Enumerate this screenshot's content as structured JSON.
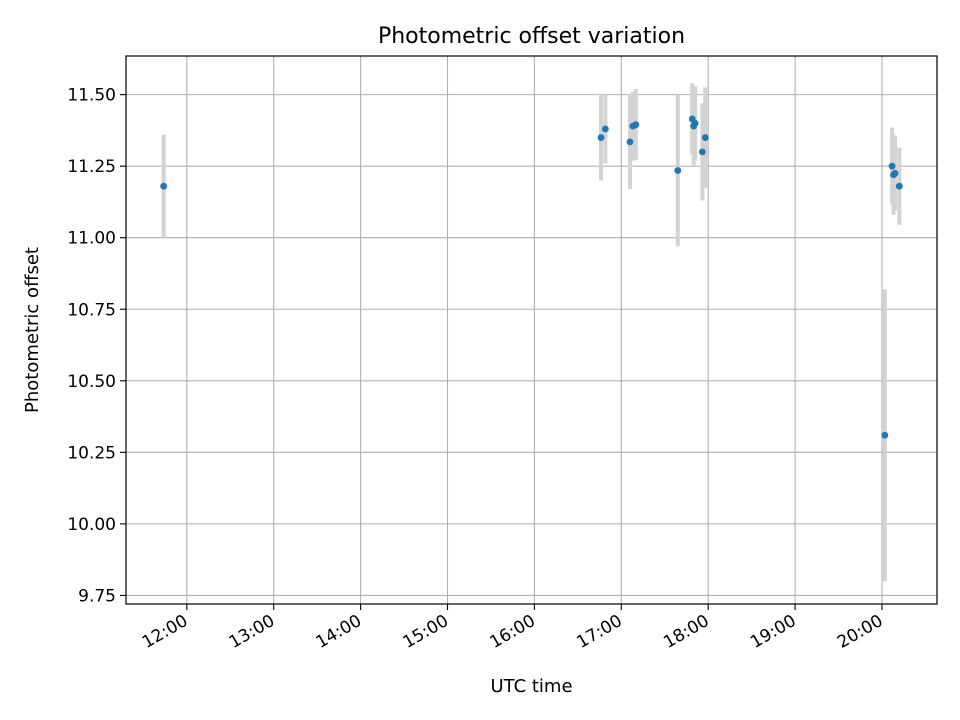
{
  "chart_data": {
    "type": "scatter",
    "title": "Photometric offset variation",
    "xlabel": "UTC time",
    "ylabel": "Photometric offset",
    "xlim": [
      "11:18",
      "20:38"
    ],
    "ylim": [
      9.72,
      11.635
    ],
    "x_ticks": [
      "12:00",
      "13:00",
      "14:00",
      "15:00",
      "16:00",
      "17:00",
      "18:00",
      "19:00",
      "20:00"
    ],
    "y_ticks": [
      "9.75",
      "10.00",
      "10.25",
      "10.50",
      "10.75",
      "11.00",
      "11.25",
      "11.50"
    ],
    "grid": true,
    "point_color": "#1f77b4",
    "errorbar_color": "#d3d3d3",
    "points": [
      {
        "x": "11:44",
        "y": 11.18,
        "err": 0.18
      },
      {
        "x": "16:46",
        "y": 11.35,
        "err": 0.15
      },
      {
        "x": "16:49",
        "y": 11.38,
        "err": 0.12
      },
      {
        "x": "17:06",
        "y": 11.335,
        "err": 0.165
      },
      {
        "x": "17:08",
        "y": 11.39,
        "err": 0.12
      },
      {
        "x": "17:10",
        "y": 11.395,
        "err": 0.125
      },
      {
        "x": "17:39",
        "y": 11.235,
        "err": 0.265
      },
      {
        "x": "17:49",
        "y": 11.415,
        "err": 0.125
      },
      {
        "x": "17:50",
        "y": 11.39,
        "err": 0.14
      },
      {
        "x": "17:51",
        "y": 11.4,
        "err": 0.13
      },
      {
        "x": "17:56",
        "y": 11.3,
        "err": 0.17
      },
      {
        "x": "17:58",
        "y": 11.35,
        "err": 0.175
      },
      {
        "x": "20:02",
        "y": 10.31,
        "err": 0.51
      },
      {
        "x": "20:07",
        "y": 11.25,
        "err": 0.135
      },
      {
        "x": "20:08",
        "y": 11.22,
        "err": 0.14
      },
      {
        "x": "20:09",
        "y": 11.225,
        "err": 0.13
      },
      {
        "x": "20:12",
        "y": 11.18,
        "err": 0.135
      }
    ]
  }
}
